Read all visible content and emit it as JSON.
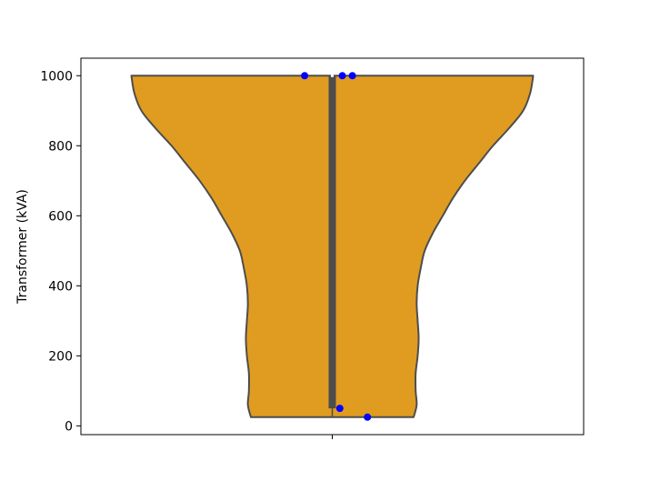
{
  "chart_data": {
    "type": "violin",
    "title": "",
    "xlabel": "",
    "ylabel": "Transformer (kVA)",
    "ylim": [
      -25,
      1050
    ],
    "yticks": [
      0,
      200,
      400,
      600,
      800,
      1000
    ],
    "grid": false,
    "colors": {
      "violin_fill": "#e09c20",
      "violin_edge": "#4d4d4d",
      "box": "#4d4d4d",
      "points": "#0000ff"
    },
    "violin_range": [
      25,
      1000
    ],
    "violin_profile": [
      {
        "y": 1000,
        "w": 1.0
      },
      {
        "y": 950,
        "w": 0.985
      },
      {
        "y": 900,
        "w": 0.95
      },
      {
        "y": 850,
        "w": 0.88
      },
      {
        "y": 800,
        "w": 0.8
      },
      {
        "y": 750,
        "w": 0.73
      },
      {
        "y": 700,
        "w": 0.66
      },
      {
        "y": 650,
        "w": 0.6
      },
      {
        "y": 600,
        "w": 0.55
      },
      {
        "y": 550,
        "w": 0.5
      },
      {
        "y": 500,
        "w": 0.46
      },
      {
        "y": 450,
        "w": 0.44
      },
      {
        "y": 400,
        "w": 0.425
      },
      {
        "y": 350,
        "w": 0.42
      },
      {
        "y": 300,
        "w": 0.425
      },
      {
        "y": 250,
        "w": 0.43
      },
      {
        "y": 200,
        "w": 0.425
      },
      {
        "y": 150,
        "w": 0.415
      },
      {
        "y": 100,
        "w": 0.415
      },
      {
        "y": 60,
        "w": 0.42
      },
      {
        "y": 25,
        "w": 0.405
      }
    ],
    "box": {
      "q1": 50,
      "q3": 1000,
      "median": 1000,
      "whisker_low": 25,
      "whisker_high": 1000
    },
    "points": [
      {
        "y": 1000,
        "jitter": -0.055
      },
      {
        "y": 1000,
        "jitter": 0.02
      },
      {
        "y": 1000,
        "jitter": 0.04
      },
      {
        "y": 50,
        "jitter": 0.015
      },
      {
        "y": 25,
        "jitter": 0.07
      }
    ]
  }
}
